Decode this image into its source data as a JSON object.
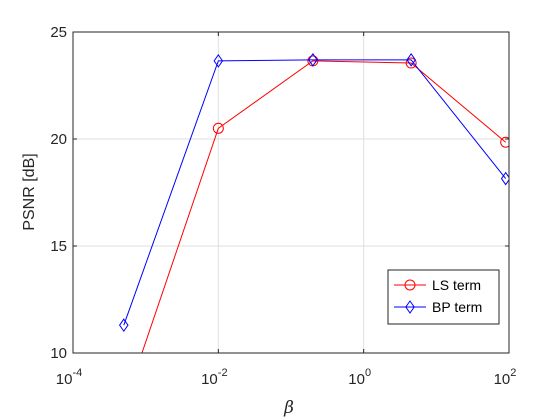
{
  "chart_data": {
    "type": "line",
    "xscale": "log",
    "xlim": [
      0.0001,
      100
    ],
    "ylim": [
      10,
      25
    ],
    "xlabel": "β",
    "ylabel": "PSNR [dB]",
    "grid": true,
    "legend_position": "bottom-right",
    "x_ticks": [
      0.0001,
      0.01,
      1,
      100
    ],
    "x_tick_labels": [
      {
        "base": "10",
        "exp": "-4"
      },
      {
        "base": "10",
        "exp": "-2"
      },
      {
        "base": "10",
        "exp": "0"
      },
      {
        "base": "10",
        "exp": "2"
      }
    ],
    "y_ticks": [
      10,
      15,
      20,
      25
    ],
    "y_tick_labels": [
      "10",
      "15",
      "20",
      "25"
    ],
    "series": [
      {
        "name": "LS term",
        "color": "#ff0000",
        "marker": "circle",
        "x": [
          0.0005,
          0.01,
          0.2,
          4.5,
          90
        ],
        "y": [
          7.5,
          20.5,
          23.65,
          23.55,
          19.85
        ]
      },
      {
        "name": "BP term",
        "color": "#0000ff",
        "marker": "diamond",
        "x": [
          0.0005,
          0.01,
          0.2,
          4.5,
          90
        ],
        "y": [
          11.3,
          23.65,
          23.7,
          23.7,
          18.15
        ]
      }
    ]
  }
}
